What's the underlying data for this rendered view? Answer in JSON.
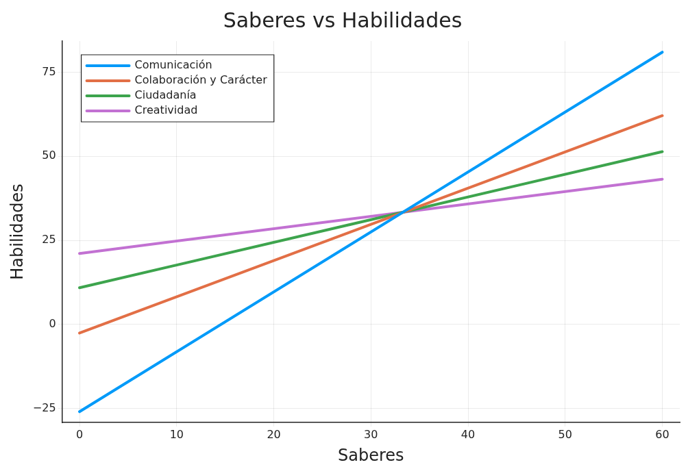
{
  "chart_data": {
    "type": "line",
    "title": "Saberes vs Habilidades",
    "xlabel": "Saberes",
    "ylabel": "Habilidades",
    "x": [
      0,
      60
    ],
    "series": [
      {
        "name": "Comunicación",
        "color": "#009af9",
        "values": [
          -26,
          81
        ]
      },
      {
        "name": "Colaboración y Carácter",
        "color": "#e26f46",
        "values": [
          -2.6,
          62.1
        ]
      },
      {
        "name": "Ciudadanía",
        "color": "#3da44d",
        "values": [
          10.9,
          51.4
        ]
      },
      {
        "name": "Creatividad",
        "color": "#c271d2",
        "values": [
          21.1,
          43.2
        ]
      }
    ],
    "xlim": [
      -1.8,
      61.8
    ],
    "xticks": [
      0,
      10,
      20,
      30,
      40,
      50,
      60
    ],
    "ylim": [
      -29.2,
      84.3
    ],
    "yticks": [
      -25,
      0,
      25,
      50,
      75
    ],
    "grid": true,
    "legend": "top left",
    "marker": "none",
    "line_style": "solid"
  }
}
